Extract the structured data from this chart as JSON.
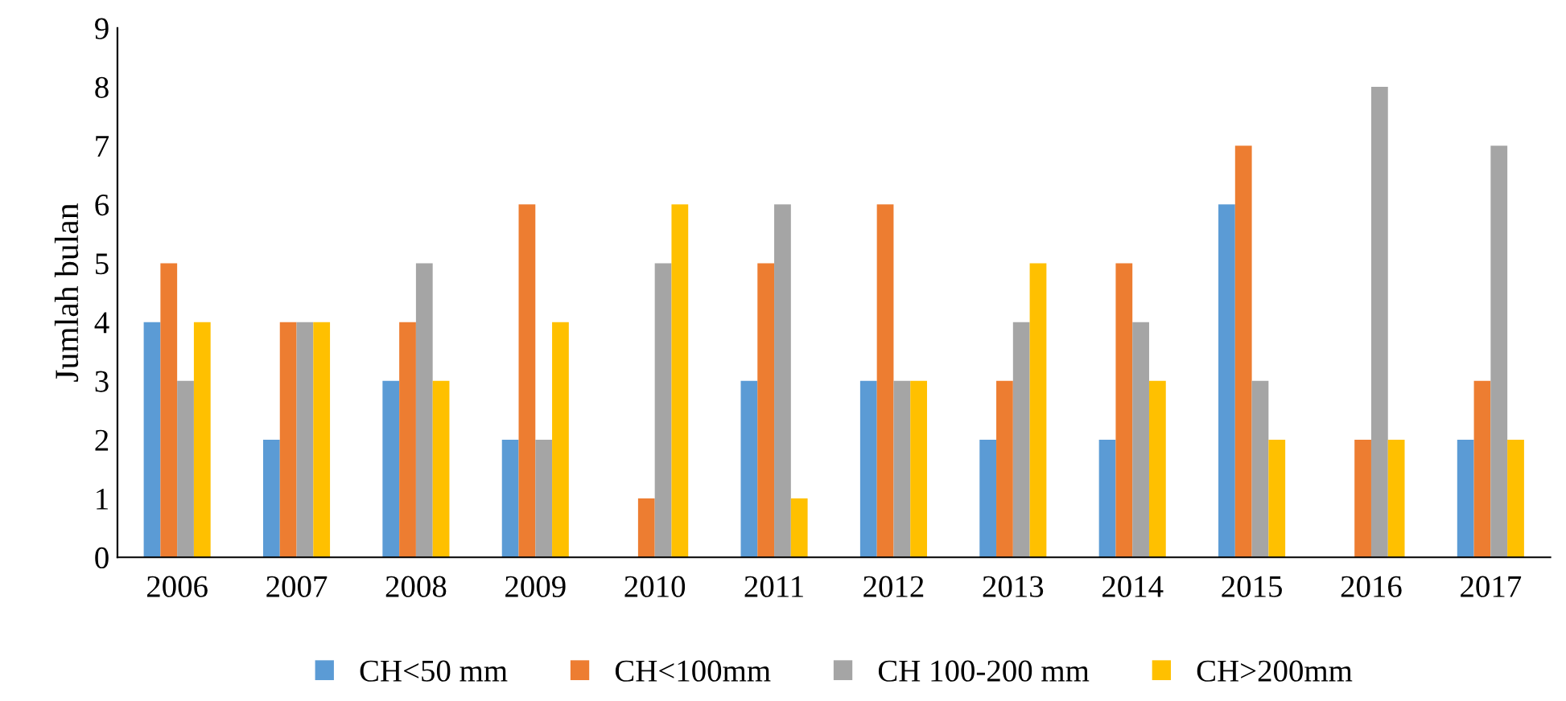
{
  "chart_data": {
    "type": "bar",
    "ylabel": "Jumlah bulan",
    "categories": [
      "2006",
      "2007",
      "2008",
      "2009",
      "2010",
      "2011",
      "2012",
      "2013",
      "2014",
      "2015",
      "2016",
      "2017"
    ],
    "series": [
      {
        "name": "CH<50 mm",
        "color": "#5b9bd5",
        "values": [
          4,
          2,
          3,
          2,
          0,
          3,
          3,
          2,
          2,
          6,
          0,
          2
        ]
      },
      {
        "name": "CH<100mm",
        "color": "#ed7d31",
        "values": [
          5,
          4,
          4,
          6,
          1,
          5,
          6,
          3,
          5,
          7,
          2,
          3
        ]
      },
      {
        "name": "CH 100-200 mm",
        "color": "#a5a5a5",
        "values": [
          3,
          4,
          5,
          2,
          5,
          6,
          3,
          4,
          4,
          3,
          8,
          7
        ]
      },
      {
        "name": "CH>200mm",
        "color": "#ffc000",
        "values": [
          4,
          4,
          3,
          4,
          6,
          1,
          3,
          5,
          3,
          2,
          2,
          2
        ]
      }
    ],
    "ylim": [
      0,
      9
    ],
    "yticks": [
      0,
      1,
      2,
      3,
      4,
      5,
      6,
      7,
      8,
      9
    ],
    "grid": false,
    "legend": "bottom"
  }
}
